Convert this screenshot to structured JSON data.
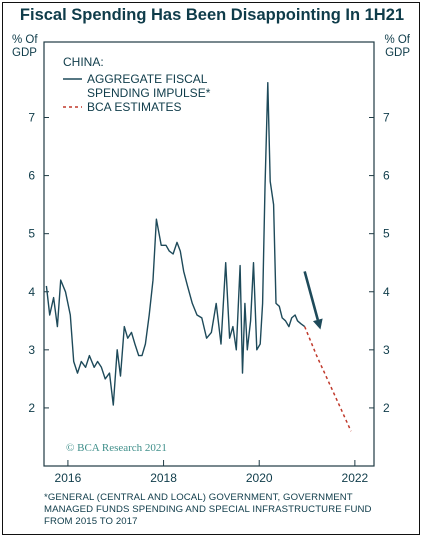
{
  "title": "Fiscal Spending Has Been Disappointing In 1H21",
  "footnote_lines": [
    "*GENERAL (CENTRAL AND LOCAL) GOVERNMENT, GOVERNMENT",
    "MANAGED FUNDS SPENDING AND SPECIAL INFRASTRUCTURE FUND",
    "FROM 2015 TO 2017"
  ],
  "watermark": "© BCA Research 2021",
  "chart_data": {
    "type": "line",
    "title": "Fiscal Spending Has Been Disappointing In 1H21",
    "y_unit_left": "% Of GDP",
    "y_unit_right": "% Of GDP",
    "legend_header": "CHINA:",
    "legend_position": "top-left",
    "xlim": [
      2015.5,
      2022.4
    ],
    "ylim": [
      1.0,
      8.3
    ],
    "x_ticks": [
      2016,
      2018,
      2020,
      2022
    ],
    "y_ticks": [
      2,
      3,
      4,
      5,
      6,
      7
    ],
    "y_tick_labels_left": [
      "2",
      "3",
      "4",
      "5",
      "6",
      "7"
    ],
    "y_tick_labels_right": [
      "2",
      "3",
      "4",
      "5",
      "6",
      "7"
    ],
    "grid": false,
    "colors": {
      "series": "#1e4a5a",
      "estimate": "#c0392b",
      "text": "#0f3c4a",
      "arrow": "#1e4a5a"
    },
    "series": [
      {
        "name_lines": [
          "AGGREGATE FISCAL",
          "SPENDING IMPULSE*"
        ],
        "style": "solid",
        "x": [
          2015.55,
          2015.62,
          2015.7,
          2015.78,
          2015.85,
          2015.95,
          2016.05,
          2016.12,
          2016.2,
          2016.28,
          2016.37,
          2016.45,
          2016.55,
          2016.62,
          2016.7,
          2016.78,
          2016.87,
          2016.95,
          2017.03,
          2017.1,
          2017.18,
          2017.25,
          2017.33,
          2017.4,
          2017.48,
          2017.55,
          2017.62,
          2017.7,
          2017.78,
          2017.85,
          2017.95,
          2018.05,
          2018.12,
          2018.2,
          2018.28,
          2018.35,
          2018.42,
          2018.5,
          2018.6,
          2018.7,
          2018.8,
          2018.9,
          2019.0,
          2019.1,
          2019.2,
          2019.3,
          2019.38,
          2019.45,
          2019.52,
          2019.6,
          2019.65,
          2019.7,
          2019.75,
          2019.82,
          2019.88,
          2019.95,
          2020.02,
          2020.07,
          2020.12,
          2020.18,
          2020.23,
          2020.3,
          2020.35,
          2020.42,
          2020.48,
          2020.55,
          2020.62,
          2020.68,
          2020.75,
          2020.8,
          2020.87,
          2020.95
        ],
        "y": [
          4.1,
          3.6,
          3.9,
          3.4,
          4.2,
          4.0,
          3.6,
          2.8,
          2.6,
          2.8,
          2.7,
          2.9,
          2.7,
          2.8,
          2.7,
          2.5,
          2.6,
          2.05,
          3.0,
          2.55,
          3.4,
          3.2,
          3.3,
          3.1,
          2.9,
          2.9,
          3.1,
          3.6,
          4.2,
          5.25,
          4.8,
          4.8,
          4.7,
          4.65,
          4.85,
          4.7,
          4.35,
          4.1,
          3.8,
          3.6,
          3.55,
          3.2,
          3.3,
          3.8,
          3.1,
          4.5,
          3.2,
          3.4,
          3.0,
          4.45,
          2.6,
          3.8,
          3.0,
          3.5,
          4.5,
          3.0,
          3.1,
          3.8,
          5.8,
          7.6,
          5.9,
          5.5,
          3.8,
          3.75,
          3.55,
          3.5,
          3.4,
          3.55,
          3.6,
          3.5,
          3.45,
          3.4
        ]
      },
      {
        "name": "BCA ESTIMATES",
        "style": "dashed",
        "x": [
          2020.95,
          2021.2,
          2021.45,
          2021.7,
          2021.92
        ],
        "y": [
          3.4,
          2.9,
          2.45,
          2.0,
          1.6
        ]
      }
    ],
    "annotations": [
      {
        "type": "arrow",
        "direction": "down-right",
        "from": [
          2020.95,
          4.35
        ],
        "to": [
          2021.28,
          3.35
        ]
      }
    ]
  }
}
